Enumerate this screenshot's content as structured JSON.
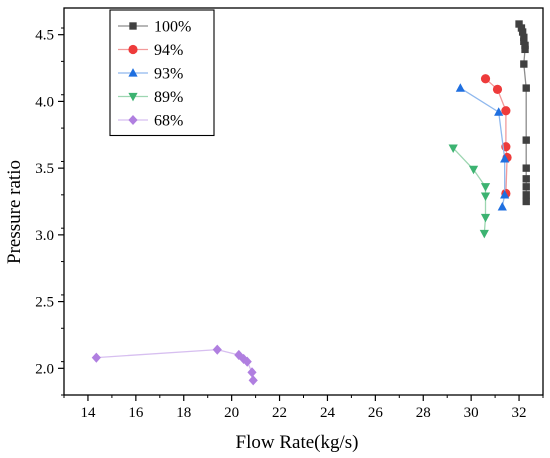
{
  "chart_data": {
    "type": "scatter",
    "xlabel": "Flow Rate(kg/s)",
    "ylabel": "Pressure ratio",
    "xlim": [
      13,
      33
    ],
    "ylim": [
      1.8,
      4.7
    ],
    "xticks": [
      14,
      16,
      18,
      20,
      22,
      24,
      26,
      28,
      30,
      32
    ],
    "yticks": [
      2.0,
      2.5,
      3.0,
      3.5,
      4.0,
      4.5
    ],
    "xtick_labels": [
      "14",
      "16",
      "18",
      "20",
      "22",
      "24",
      "26",
      "28",
      "30",
      "32"
    ],
    "ytick_labels": [
      "2.0",
      "2.5",
      "3.0",
      "3.5",
      "4.0",
      "4.5"
    ],
    "grid": false,
    "legend_position": "top-left",
    "series": [
      {
        "name": "100%",
        "marker": "square",
        "marker_color": "#404040",
        "line_color": "#8c8c8c",
        "points": [
          [
            32.0,
            4.58
          ],
          [
            32.1,
            4.55
          ],
          [
            32.15,
            4.52
          ],
          [
            32.2,
            4.48
          ],
          [
            32.2,
            4.45
          ],
          [
            32.25,
            4.42
          ],
          [
            32.25,
            4.39
          ],
          [
            32.2,
            4.28
          ],
          [
            32.3,
            4.1
          ],
          [
            32.3,
            3.71
          ],
          [
            32.3,
            3.5
          ],
          [
            32.3,
            3.42
          ],
          [
            32.3,
            3.36
          ],
          [
            32.3,
            3.3
          ],
          [
            32.3,
            3.25
          ]
        ]
      },
      {
        "name": "94%",
        "marker": "circle",
        "marker_color": "#ee3b3b",
        "line_color": "#f29a9a",
        "points": [
          [
            30.6,
            4.17
          ],
          [
            31.1,
            4.09
          ],
          [
            31.45,
            3.93
          ],
          [
            31.45,
            3.66
          ],
          [
            31.5,
            3.58
          ],
          [
            31.45,
            3.31
          ]
        ]
      },
      {
        "name": "93%",
        "marker": "triangle-up",
        "marker_color": "#1f6fe0",
        "line_color": "#8fb8ee",
        "points": [
          [
            29.55,
            4.1
          ],
          [
            31.15,
            3.92
          ],
          [
            31.4,
            3.57
          ],
          [
            31.4,
            3.3
          ],
          [
            31.3,
            3.21
          ]
        ]
      },
      {
        "name": "89%",
        "marker": "triangle-down",
        "marker_color": "#3cb371",
        "line_color": "#9dd6b1",
        "points": [
          [
            29.25,
            3.65
          ],
          [
            30.1,
            3.49
          ],
          [
            30.6,
            3.36
          ],
          [
            30.6,
            3.29
          ],
          [
            30.6,
            3.13
          ],
          [
            30.55,
            3.01
          ]
        ]
      },
      {
        "name": "68%",
        "marker": "diamond",
        "marker_color": "#b07fe0",
        "line_color": "#d7bff0",
        "points": [
          [
            14.35,
            2.08
          ],
          [
            19.4,
            2.14
          ],
          [
            20.3,
            2.1
          ],
          [
            20.5,
            2.07
          ],
          [
            20.65,
            2.05
          ],
          [
            20.85,
            1.97
          ],
          [
            20.9,
            1.91
          ]
        ]
      }
    ]
  }
}
